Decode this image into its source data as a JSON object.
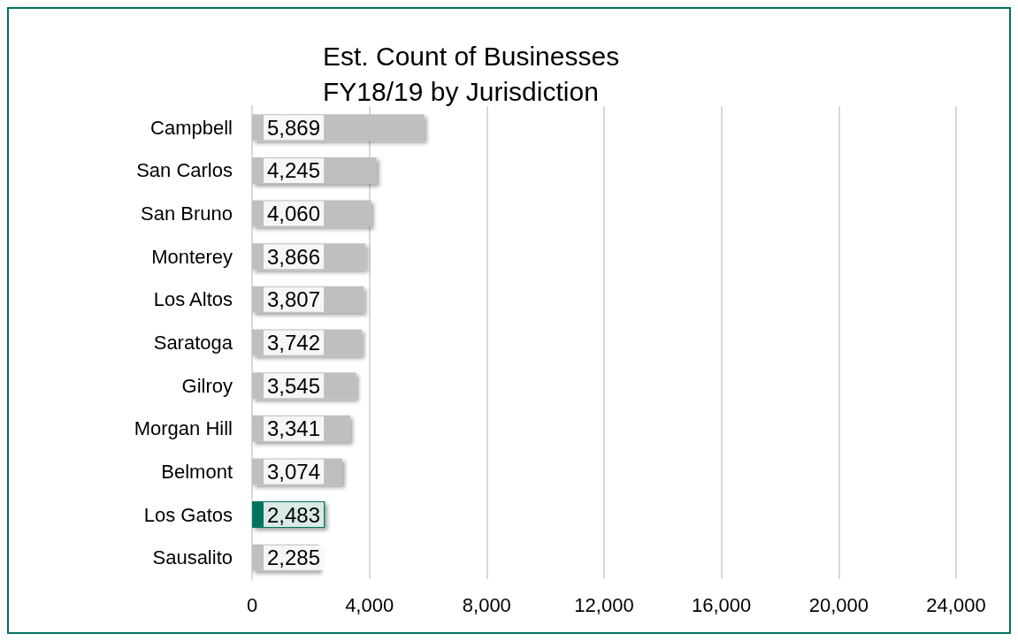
{
  "chart_data": {
    "type": "bar",
    "orientation": "horizontal",
    "title": "Est. Count of Businesses\nFY18/19 by Jurisdiction",
    "categories": [
      "Campbell",
      "San Carlos",
      "San Bruno",
      "Monterey",
      "Los Altos",
      "Saratoga",
      "Gilroy",
      "Morgan Hill",
      "Belmont",
      "Los Gatos",
      "Sausalito"
    ],
    "values": [
      5869,
      4245,
      4060,
      3866,
      3807,
      3742,
      3545,
      3341,
      3074,
      2483,
      2285
    ],
    "colors": [
      "#bfbfbf",
      "#bfbfbf",
      "#bfbfbf",
      "#bfbfbf",
      "#bfbfbf",
      "#bfbfbf",
      "#bfbfbf",
      "#bfbfbf",
      "#bfbfbf",
      "#00735f",
      "#bfbfbf"
    ],
    "value_labels": [
      "5,869",
      "4,245",
      "4,060",
      "3,866",
      "3,807",
      "3,742",
      "3,545",
      "3,341",
      "3,074",
      "2,483",
      "2,285"
    ],
    "xlim": [
      0,
      24000
    ],
    "xticks": [
      0,
      {
        "value": 4000,
        "label": "4,000"
      },
      {
        "value": 8000,
        "label": "8,000"
      },
      {
        "value": 12000,
        "label": "12,000"
      },
      {
        "value": 16000,
        "label": "16,000"
      },
      {
        "value": 20000,
        "label": "20,000"
      },
      {
        "value": 24000,
        "label": "24,000"
      }
    ],
    "grid": "x"
  }
}
